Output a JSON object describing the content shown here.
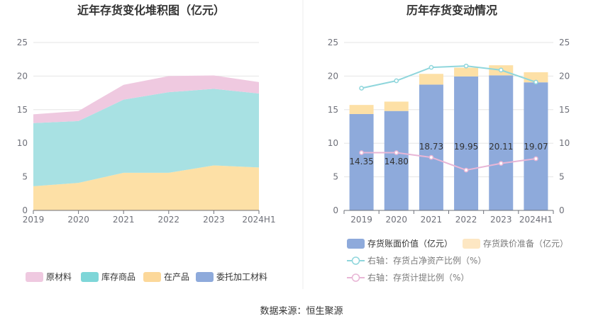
{
  "source_label": "数据来源：恒生聚源",
  "chart_data": [
    {
      "type": "area",
      "title": "近年存货变化堆积图（亿元）",
      "categories": [
        "2019",
        "2020",
        "2021",
        "2022",
        "2023",
        "2024H1"
      ],
      "ylim": [
        0,
        25
      ],
      "yticks": [
        0,
        5,
        10,
        15,
        20,
        25
      ],
      "stacked": true,
      "series": [
        {
          "name": "在产品",
          "color": "#fde0a6",
          "values": [
            3.6,
            4.1,
            5.6,
            5.6,
            6.7,
            6.4
          ]
        },
        {
          "name": "库存商品",
          "color": "#a8e1e3",
          "values": [
            9.4,
            9.2,
            10.9,
            12.0,
            11.4,
            11.0
          ]
        },
        {
          "name": "原材料",
          "color": "#efc9e0",
          "values": [
            1.3,
            1.5,
            2.2,
            2.4,
            2.0,
            1.7
          ]
        },
        {
          "name": "委托加工材料",
          "color": "#8eaadb",
          "values": [
            0.0,
            0.0,
            0.0,
            0.0,
            0.0,
            0.0
          ]
        }
      ],
      "legend": [
        {
          "name": "原材料",
          "color": "#efc9e0"
        },
        {
          "name": "库存商品",
          "color": "#7ed6d8"
        },
        {
          "name": "在产品",
          "color": "#fcd89a"
        },
        {
          "name": "委托加工材料",
          "color": "#8eaadb"
        }
      ],
      "legend_position": "bottom",
      "grid": true
    },
    {
      "type": "bar",
      "title": "历年存货变动情况",
      "categories": [
        "2019",
        "2020",
        "2021",
        "2022",
        "2023",
        "2024H1"
      ],
      "ylim": [
        0,
        25
      ],
      "yticks": [
        0,
        5,
        10,
        15,
        20,
        25
      ],
      "right_ylim": [
        0,
        25
      ],
      "right_yticks": [
        0,
        5,
        10,
        15,
        20,
        25
      ],
      "stacked": true,
      "series": [
        {
          "name": "存货账面价值（亿元）",
          "color": "#8eaadb",
          "values": [
            14.35,
            14.8,
            18.73,
            19.95,
            20.11,
            19.07
          ],
          "labels": [
            "14.35",
            "14.80",
            "18.73",
            "19.95",
            "20.11",
            "19.07"
          ]
        },
        {
          "name": "存货跌价准备（亿元）",
          "color": "#fde0a6",
          "values": [
            1.35,
            1.4,
            1.6,
            1.3,
            1.5,
            1.5
          ]
        }
      ],
      "lines": [
        {
          "name": "右轴：存货占净资产比例（%）",
          "color": "#8fd6dc",
          "axis": "right",
          "values": [
            18.2,
            19.3,
            21.3,
            21.5,
            20.9,
            19.1
          ]
        },
        {
          "name": "右轴：存货计提比例（%）",
          "color": "#e8b6d6",
          "axis": "right",
          "values": [
            8.6,
            8.6,
            7.9,
            6.0,
            7.0,
            7.7
          ]
        }
      ],
      "legend": [
        {
          "name": "存货账面价值（亿元）",
          "color": "#8eaadb",
          "kind": "rect"
        },
        {
          "name": "存货跌价准备（亿元）",
          "color": "#fde7c3",
          "kind": "rect"
        },
        {
          "name": "右轴：存货占净资产比例（%）",
          "color": "#8fd6dc",
          "kind": "line"
        },
        {
          "name": "右轴：存货计提比例（%）",
          "color": "#e8b6d6",
          "kind": "line"
        }
      ],
      "legend_position": "bottom",
      "grid": true
    }
  ]
}
